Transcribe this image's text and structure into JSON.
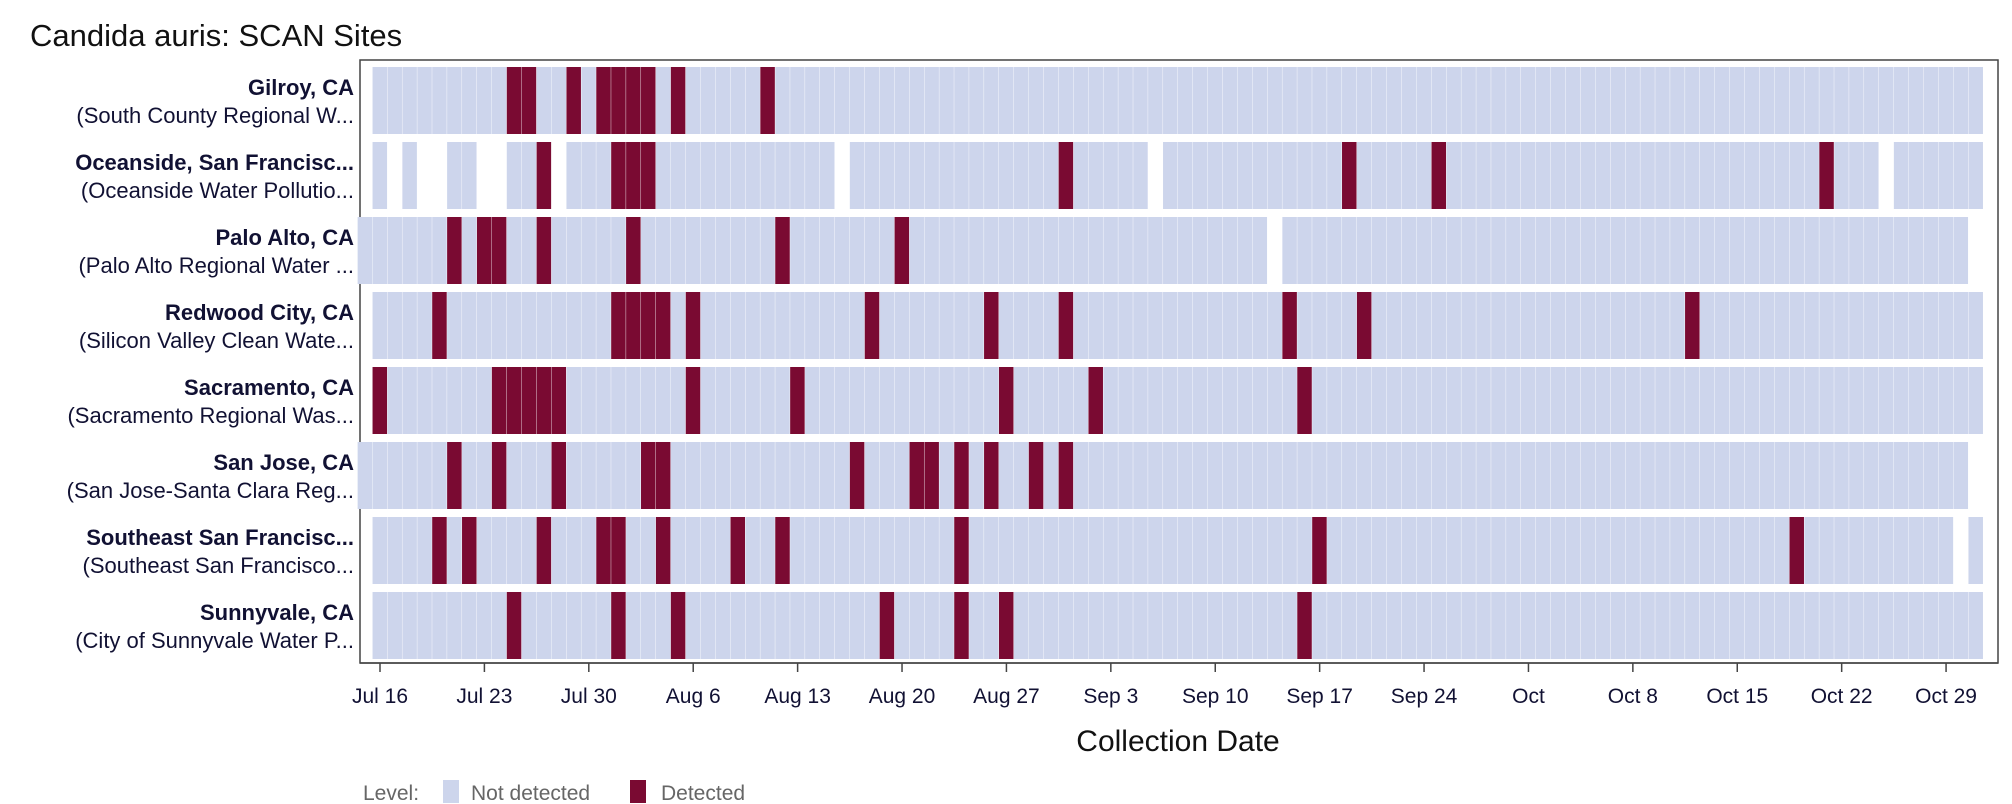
{
  "chart_data": {
    "type": "heatmap",
    "title": "Candida auris: SCAN Sites",
    "xlabel": "Collection Date",
    "xlim": [
      "2024-07-16",
      "2024-10-31"
    ],
    "x_ticks": [
      "Jul 16",
      "Jul 23",
      "Jul 30",
      "Aug 6",
      "Aug 13",
      "Aug 20",
      "Aug 27",
      "Sep 3",
      "Sep 10",
      "Sep 17",
      "Sep 24",
      "Oct",
      "Oct 8",
      "Oct 15",
      "Oct 22",
      "Oct 29"
    ],
    "legend": {
      "title": "Level:",
      "placement": "bottom-left",
      "entries": [
        {
          "label": "Not detected",
          "color": "#cdd5ec"
        },
        {
          "label": "Detected",
          "color": "#7a0a32"
        }
      ]
    },
    "sites": [
      {
        "name": "Gilroy, CA",
        "plant": "(South County Regional W...",
        "range": [
          "2024-07-16",
          "2024-10-31"
        ],
        "gaps": [],
        "detected": [
          "2024-07-25",
          "2024-07-26",
          "2024-07-29",
          "2024-07-31",
          "2024-08-01",
          "2024-08-02",
          "2024-08-03",
          "2024-08-05",
          "2024-08-11"
        ]
      },
      {
        "name": "Oceanside, San Francisc...",
        "plant": "(Oceanside Water Pollutio...",
        "range": [
          "2024-07-16",
          "2024-10-31"
        ],
        "gaps": [
          "2024-07-17",
          "2024-07-19",
          "2024-07-20",
          "2024-07-23",
          "2024-07-24",
          "2024-07-28",
          "2024-08-16",
          "2024-09-06",
          "2024-10-25"
        ],
        "detected": [
          "2024-07-27",
          "2024-08-01",
          "2024-08-02",
          "2024-08-03",
          "2024-08-31",
          "2024-09-19",
          "2024-09-25",
          "2024-10-21"
        ]
      },
      {
        "name": "Palo Alto, CA",
        "plant": "(Palo Alto Regional Water ...",
        "range": [
          "2024-07-15",
          "2024-10-30"
        ],
        "gaps": [
          "2024-09-14"
        ],
        "detected": [
          "2024-07-21",
          "2024-07-23",
          "2024-07-24",
          "2024-07-27",
          "2024-08-02",
          "2024-08-12",
          "2024-08-20"
        ]
      },
      {
        "name": "Redwood City, CA",
        "plant": "(Silicon Valley Clean Wate...",
        "range": [
          "2024-07-16",
          "2024-10-31"
        ],
        "gaps": [],
        "detected": [
          "2024-07-20",
          "2024-08-01",
          "2024-08-02",
          "2024-08-03",
          "2024-08-04",
          "2024-08-06",
          "2024-08-18",
          "2024-08-26",
          "2024-08-31",
          "2024-09-15",
          "2024-09-20",
          "2024-10-12"
        ]
      },
      {
        "name": "Sacramento, CA",
        "plant": "(Sacramento Regional Was...",
        "range": [
          "2024-07-16",
          "2024-10-31"
        ],
        "gaps": [],
        "detected": [
          "2024-07-16",
          "2024-07-24",
          "2024-07-25",
          "2024-07-26",
          "2024-07-27",
          "2024-07-28",
          "2024-08-06",
          "2024-08-13",
          "2024-08-27",
          "2024-09-02",
          "2024-09-16"
        ]
      },
      {
        "name": "San Jose, CA",
        "plant": "(San Jose-Santa Clara Reg...",
        "range": [
          "2024-07-15",
          "2024-10-30"
        ],
        "gaps": [],
        "detected": [
          "2024-07-21",
          "2024-07-24",
          "2024-07-28",
          "2024-08-03",
          "2024-08-04",
          "2024-08-17",
          "2024-08-21",
          "2024-08-22",
          "2024-08-24",
          "2024-08-26",
          "2024-08-29",
          "2024-08-31"
        ]
      },
      {
        "name": "Southeast San Francisc...",
        "plant": "(Southeast San Francisco...",
        "range": [
          "2024-07-16",
          "2024-10-31"
        ],
        "gaps": [
          "2024-10-30"
        ],
        "detected": [
          "2024-07-20",
          "2024-07-22",
          "2024-07-27",
          "2024-07-31",
          "2024-08-01",
          "2024-08-04",
          "2024-08-09",
          "2024-08-12",
          "2024-08-24",
          "2024-09-17",
          "2024-10-19"
        ]
      },
      {
        "name": "Sunnyvale, CA",
        "plant": "(City of Sunnyvale Water P...",
        "range": [
          "2024-07-16",
          "2024-10-31"
        ],
        "gaps": [],
        "detected": [
          "2024-07-25",
          "2024-08-01",
          "2024-08-05",
          "2024-08-19",
          "2024-08-24",
          "2024-08-27",
          "2024-09-16"
        ]
      }
    ]
  }
}
